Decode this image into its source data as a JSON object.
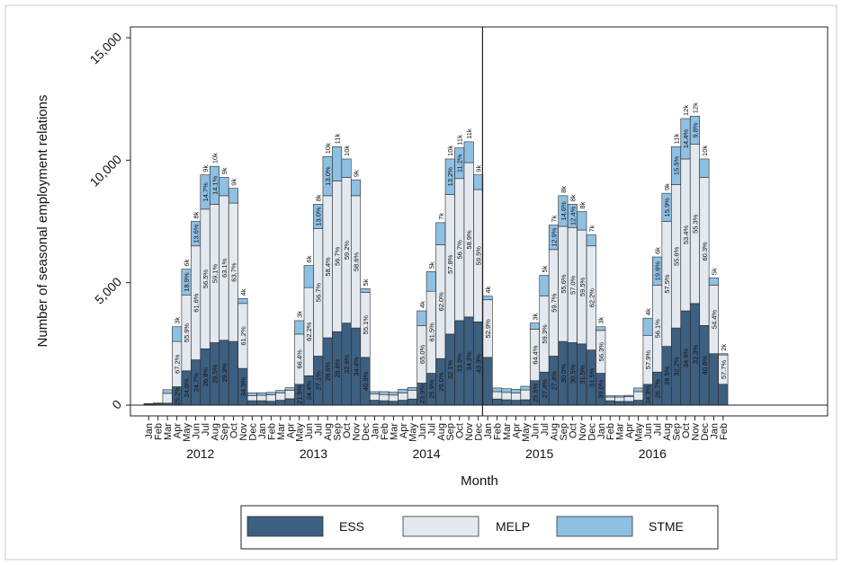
{
  "chart_data": {
    "type": "bar",
    "stacked": true,
    "xlabel": "Month",
    "ylabel": "Number of seasonal employment relations",
    "ylim": [
      0,
      15000
    ],
    "yticks": [
      0,
      5000,
      10000,
      15000
    ],
    "ytick_labels": [
      "0",
      "5,000",
      "10,000",
      "15,000"
    ],
    "month_labels": [
      "Jan",
      "Feb",
      "Mar",
      "Apr",
      "May",
      "Jun",
      "Jul",
      "Aug",
      "Sep",
      "Oct",
      "Nov",
      "Dec"
    ],
    "years": [
      "2012",
      "2013",
      "2014",
      "2015",
      "2016"
    ],
    "reference_line_after": "2014-Dec",
    "grid": false,
    "legend": [
      {
        "name": "ESS",
        "color": "#3d5f80"
      },
      {
        "name": "MELP",
        "color": "#e3e9ef"
      },
      {
        "name": "STME",
        "color": "#8ec0e2"
      }
    ],
    "legend_position": "bottom",
    "series_colors": {
      "ESS": "#3d5f80",
      "MELP": "#e3e9ef",
      "STME": "#8ec0e2"
    },
    "months": [
      {
        "ess": 40,
        "melp": 20,
        "stme": 0
      },
      {
        "ess": 60,
        "melp": 30,
        "stme": 0
      },
      {
        "ess": 80,
        "melp": 400,
        "stme": 150
      },
      {
        "ess": 750,
        "melp": 1850,
        "stme": 600,
        "ess_label": "25.2%",
        "melp_label": "67.2%",
        "total_label": "3k"
      },
      {
        "ess": 1400,
        "melp": 3100,
        "stme": 1050,
        "ess_label": "24.6%",
        "melp_label": "55.9%",
        "stme_label": "18.9%",
        "total_label": "6k"
      },
      {
        "ess": 1850,
        "melp": 4650,
        "stme": 1000,
        "ess_label": "24.7%",
        "melp_label": "61.6%",
        "stme_label": "13.6%",
        "total_label": "8k"
      },
      {
        "ess": 2300,
        "melp": 5700,
        "stme": 1400,
        "ess_label": "26.8%",
        "melp_label": "56.5%",
        "stme_label": "14.7%",
        "total_label": "9k"
      },
      {
        "ess": 2550,
        "melp": 5650,
        "stme": 1550,
        "ess_label": "26.5%",
        "melp_label": "59.1%",
        "stme_label": "14.1%",
        "total_label": "10k"
      },
      {
        "ess": 2650,
        "melp": 5900,
        "stme": 750,
        "ess_label": "29.3%",
        "melp_label": "63.1%",
        "total_label": "9k"
      },
      {
        "ess": 2600,
        "melp": 5650,
        "stme": 600,
        "melp_label": "63.7%",
        "total_label": "9k"
      },
      {
        "ess": 1500,
        "melp": 2650,
        "stme": 200,
        "ess_label": "34.5%",
        "melp_label": "61.2%",
        "total_label": "4k"
      },
      {
        "ess": 180,
        "melp": 200,
        "stme": 120
      },
      {
        "ess": 180,
        "melp": 220,
        "stme": 100
      },
      {
        "ess": 160,
        "melp": 260,
        "stme": 100
      },
      {
        "ess": 200,
        "melp": 300,
        "stme": 100
      },
      {
        "ess": 260,
        "melp": 350,
        "stme": 100
      },
      {
        "ess": 850,
        "melp": 2050,
        "stme": 550,
        "ess_label": "21.5%",
        "melp_label": "66.4%",
        "total_label": "3k"
      },
      {
        "ess": 1200,
        "melp": 3600,
        "stme": 900,
        "ess_label": "24.4%",
        "melp_label": "62.2%",
        "total_label": "6k"
      },
      {
        "ess": 2000,
        "melp": 5200,
        "stme": 1000,
        "ess_label": "27.1%",
        "melp_label": "56.7%",
        "stme_label": "13.0%",
        "total_label": "8k"
      },
      {
        "ess": 2750,
        "melp": 5800,
        "stme": 1600,
        "ess_label": "28.6%",
        "melp_label": "58.4%",
        "stme_label": "13.0%",
        "total_label": "10k"
      },
      {
        "ess": 3000,
        "melp": 6150,
        "stme": 1400,
        "ess_label": "28.6%",
        "melp_label": "56.7%",
        "total_label": "11k"
      },
      {
        "ess": 3350,
        "melp": 5950,
        "stme": 750,
        "ess_label": "32.6%",
        "melp_label": "59.2%",
        "total_label": "10k"
      },
      {
        "ess": 3150,
        "melp": 5400,
        "stme": 650,
        "ess_label": "34.4%",
        "melp_label": "58.6%",
        "total_label": "9k"
      },
      {
        "ess": 1950,
        "melp": 2650,
        "stme": 150,
        "ess_label": "40.9%",
        "melp_label": "55.1%",
        "total_label": "5k"
      },
      {
        "ess": 200,
        "melp": 250,
        "stme": 100
      },
      {
        "ess": 180,
        "melp": 250,
        "stme": 120
      },
      {
        "ess": 160,
        "melp": 250,
        "stme": 120
      },
      {
        "ess": 200,
        "melp": 300,
        "stme": 150
      },
      {
        "ess": 250,
        "melp": 350,
        "stme": 120
      },
      {
        "ess": 900,
        "melp": 2350,
        "stme": 600,
        "ess_label": "23.9%",
        "melp_label": "65.0%",
        "total_label": "4k"
      },
      {
        "ess": 1300,
        "melp": 3350,
        "stme": 800,
        "ess_label": "25.9%",
        "melp_label": "61.5%",
        "total_label": "5k"
      },
      {
        "ess": 1900,
        "melp": 4650,
        "stme": 900,
        "ess_label": "29.0%",
        "melp_label": "62.0%",
        "total_label": "7k"
      },
      {
        "ess": 2900,
        "melp": 5700,
        "stme": 1450,
        "ess_label": "32.1%",
        "melp_label": "57.8%",
        "stme_label": "13.2%",
        "total_label": "10k"
      },
      {
        "ess": 3450,
        "melp": 5800,
        "stme": 1250,
        "ess_label": "33.9%",
        "melp_label": "56.7%",
        "stme_label": "11.2%",
        "total_label": "11k"
      },
      {
        "ess": 3600,
        "melp": 6300,
        "stme": 850,
        "ess_label": "34.2%",
        "melp_label": "58.9%",
        "total_label": "11k"
      },
      {
        "ess": 3400,
        "melp": 5400,
        "stme": 600,
        "ess_label": "43.3%",
        "melp_label": "59.5%",
        "total_label": "9k"
      },
      {
        "ess": 1950,
        "melp": 2350,
        "stme": 150,
        "melp_label": "52.9%",
        "total_label": "4k"
      },
      {
        "ess": 250,
        "melp": 300,
        "stme": 150
      },
      {
        "ess": 220,
        "melp": 300,
        "stme": 150
      },
      {
        "ess": 200,
        "melp": 300,
        "stme": 150
      },
      {
        "ess": 220,
        "melp": 400,
        "stme": 150
      },
      {
        "ess": 1000,
        "melp": 2100,
        "stme": 250,
        "ess_label": "25.5%",
        "melp_label": "64.4%",
        "total_label": "3k"
      },
      {
        "ess": 1350,
        "melp": 3100,
        "stme": 850,
        "ess_label": "27.4%",
        "melp_label": "59.3%",
        "total_label": "5k"
      },
      {
        "ess": 2000,
        "melp": 4350,
        "stme": 1000,
        "ess_label": "27.4%",
        "melp_label": "59.7%",
        "stme_label": "12.9%",
        "total_label": "7k"
      },
      {
        "ess": 2600,
        "melp": 4700,
        "stme": 1250,
        "ess_label": "30.0%",
        "melp_label": "55.6%",
        "stme_label": "14.6%",
        "total_label": "8k"
      },
      {
        "ess": 2550,
        "melp": 4700,
        "stme": 950,
        "ess_label": "30.5%",
        "melp_label": "57.0%",
        "stme_label": "12.4%",
        "total_label": "8k"
      },
      {
        "ess": 2500,
        "melp": 4650,
        "stme": 750,
        "ess_label": "31.5%",
        "melp_label": "59.5%",
        "total_label": "8k"
      },
      {
        "ess": 2250,
        "melp": 4250,
        "stme": 450,
        "ess_label": "31.5%",
        "melp_label": "62.2%",
        "total_label": "7k"
      },
      {
        "ess": 1300,
        "melp": 1750,
        "stme": 150,
        "ess_label": "39.0%",
        "melp_label": "56.3%",
        "total_label": "3k"
      },
      {
        "ess": 180,
        "melp": 150,
        "stme": 50
      },
      {
        "ess": 150,
        "melp": 180,
        "stme": 50
      },
      {
        "ess": 150,
        "melp": 200,
        "stme": 50
      },
      {
        "ess": 200,
        "melp": 350,
        "stme": 150
      },
      {
        "ess": 850,
        "melp": 2000,
        "stme": 700,
        "ess_label": "24.3%",
        "melp_label": "57.9%",
        "total_label": "4k"
      },
      {
        "ess": 1350,
        "melp": 3550,
        "stme": 1150,
        "ess_label": "26.7%",
        "melp_label": "56.1%",
        "stme_label": "19.6%",
        "total_label": "6k"
      },
      {
        "ess": 2400,
        "melp": 5100,
        "stme": 1150,
        "ess_label": "28.5%",
        "melp_label": "57.5%",
        "stme_label": "15.9%",
        "total_label": "9k"
      },
      {
        "ess": 3150,
        "melp": 5850,
        "stme": 1550,
        "ess_label": "32.2%",
        "melp_label": "55.6%",
        "stme_label": "15.5%",
        "total_label": "11k"
      },
      {
        "ess": 3850,
        "melp": 6200,
        "stme": 1650,
        "ess_label": "34.9%",
        "melp_label": "53.4%",
        "stme_label": "14.4%",
        "total_label": "12k"
      },
      {
        "ess": 4150,
        "melp": 6500,
        "stme": 1150,
        "ess_label": "32.3%",
        "melp_label": "55.3%",
        "stme_label": "9.8%",
        "total_label": "12k"
      },
      {
        "ess": 3250,
        "melp": 6050,
        "stme": 750,
        "ess_label": "40.6%",
        "melp_label": "60.3%",
        "total_label": "10k"
      },
      {
        "ess": 2100,
        "melp": 2800,
        "stme": 300,
        "melp_label": "54.4%",
        "total_label": "5k"
      },
      {
        "ess": 850,
        "melp": 1200,
        "stme": 50,
        "melp_label": "57.7%",
        "total_label": "2k"
      }
    ]
  }
}
